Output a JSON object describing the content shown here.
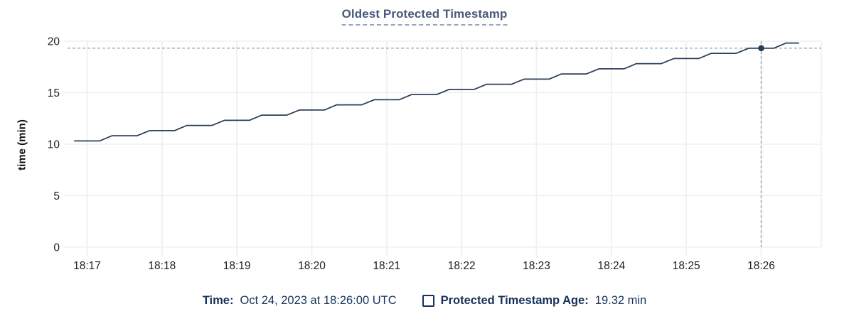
{
  "title": "Oldest Protected Timestamp",
  "y_axis": {
    "label": "time (min)"
  },
  "legend": {
    "time_label": "Time:",
    "time_value": "Oct 24, 2023 at 18:26:00 UTC",
    "series_label": "Protected Timestamp Age:",
    "series_value": "19.32 min"
  },
  "colors": {
    "line": "#2e3e59",
    "dot": "#2b3a54",
    "crosshair": "#93abbc",
    "grid_horizontal": "#e9e9e9",
    "grid_vertical": "#f0f1f1",
    "axis_text": "#1f1f1f",
    "title_text": "#49597b",
    "title_underline": "#97a5c0",
    "legend_text": "#15315a"
  },
  "chart_data": {
    "type": "line",
    "title": "Oldest Protected Timestamp",
    "xlabel": "",
    "ylabel": "time (min)",
    "ylim": [
      0,
      20
    ],
    "y_ticks": [
      0,
      5,
      10,
      15,
      20
    ],
    "x_ticks": [
      {
        "label": "18:17",
        "t": 0
      },
      {
        "label": "18:18",
        "t": 60
      },
      {
        "label": "18:19",
        "t": 120
      },
      {
        "label": "18:20",
        "t": 180
      },
      {
        "label": "18:21",
        "t": 240
      },
      {
        "label": "18:22",
        "t": 300
      },
      {
        "label": "18:23",
        "t": 360
      },
      {
        "label": "18:24",
        "t": 420
      },
      {
        "label": "18:25",
        "t": 480
      },
      {
        "label": "18:26",
        "t": 540
      }
    ],
    "grid": true,
    "legend_position": "bottom",
    "series": [
      {
        "name": "Protected Timestamp Age",
        "unit": "min",
        "t_seconds_from_18_17": [
          -10,
          0,
          10,
          20,
          30,
          40,
          50,
          60,
          70,
          80,
          90,
          100,
          110,
          120,
          130,
          140,
          150,
          160,
          170,
          180,
          190,
          200,
          210,
          220,
          230,
          240,
          250,
          260,
          270,
          280,
          290,
          300,
          310,
          320,
          330,
          340,
          350,
          360,
          370,
          380,
          390,
          400,
          410,
          420,
          430,
          440,
          450,
          460,
          470,
          480,
          490,
          500,
          510,
          520,
          530,
          540,
          550,
          560,
          570
        ],
        "values": [
          10.32,
          10.32,
          10.32,
          10.82,
          10.82,
          10.82,
          11.32,
          11.32,
          11.32,
          11.82,
          11.82,
          11.82,
          12.32,
          12.32,
          12.32,
          12.82,
          12.82,
          12.82,
          13.32,
          13.32,
          13.32,
          13.82,
          13.82,
          13.82,
          14.32,
          14.32,
          14.32,
          14.82,
          14.82,
          14.82,
          15.32,
          15.32,
          15.32,
          15.82,
          15.82,
          15.82,
          16.32,
          16.32,
          16.32,
          16.82,
          16.82,
          16.82,
          17.32,
          17.32,
          17.32,
          17.82,
          17.82,
          17.82,
          18.32,
          18.32,
          18.32,
          18.82,
          18.82,
          18.82,
          19.32,
          19.32,
          19.32,
          19.82,
          19.82
        ]
      }
    ],
    "hover_point": {
      "t": 540,
      "time": "18:26:00 UTC",
      "value": 19.32
    }
  }
}
